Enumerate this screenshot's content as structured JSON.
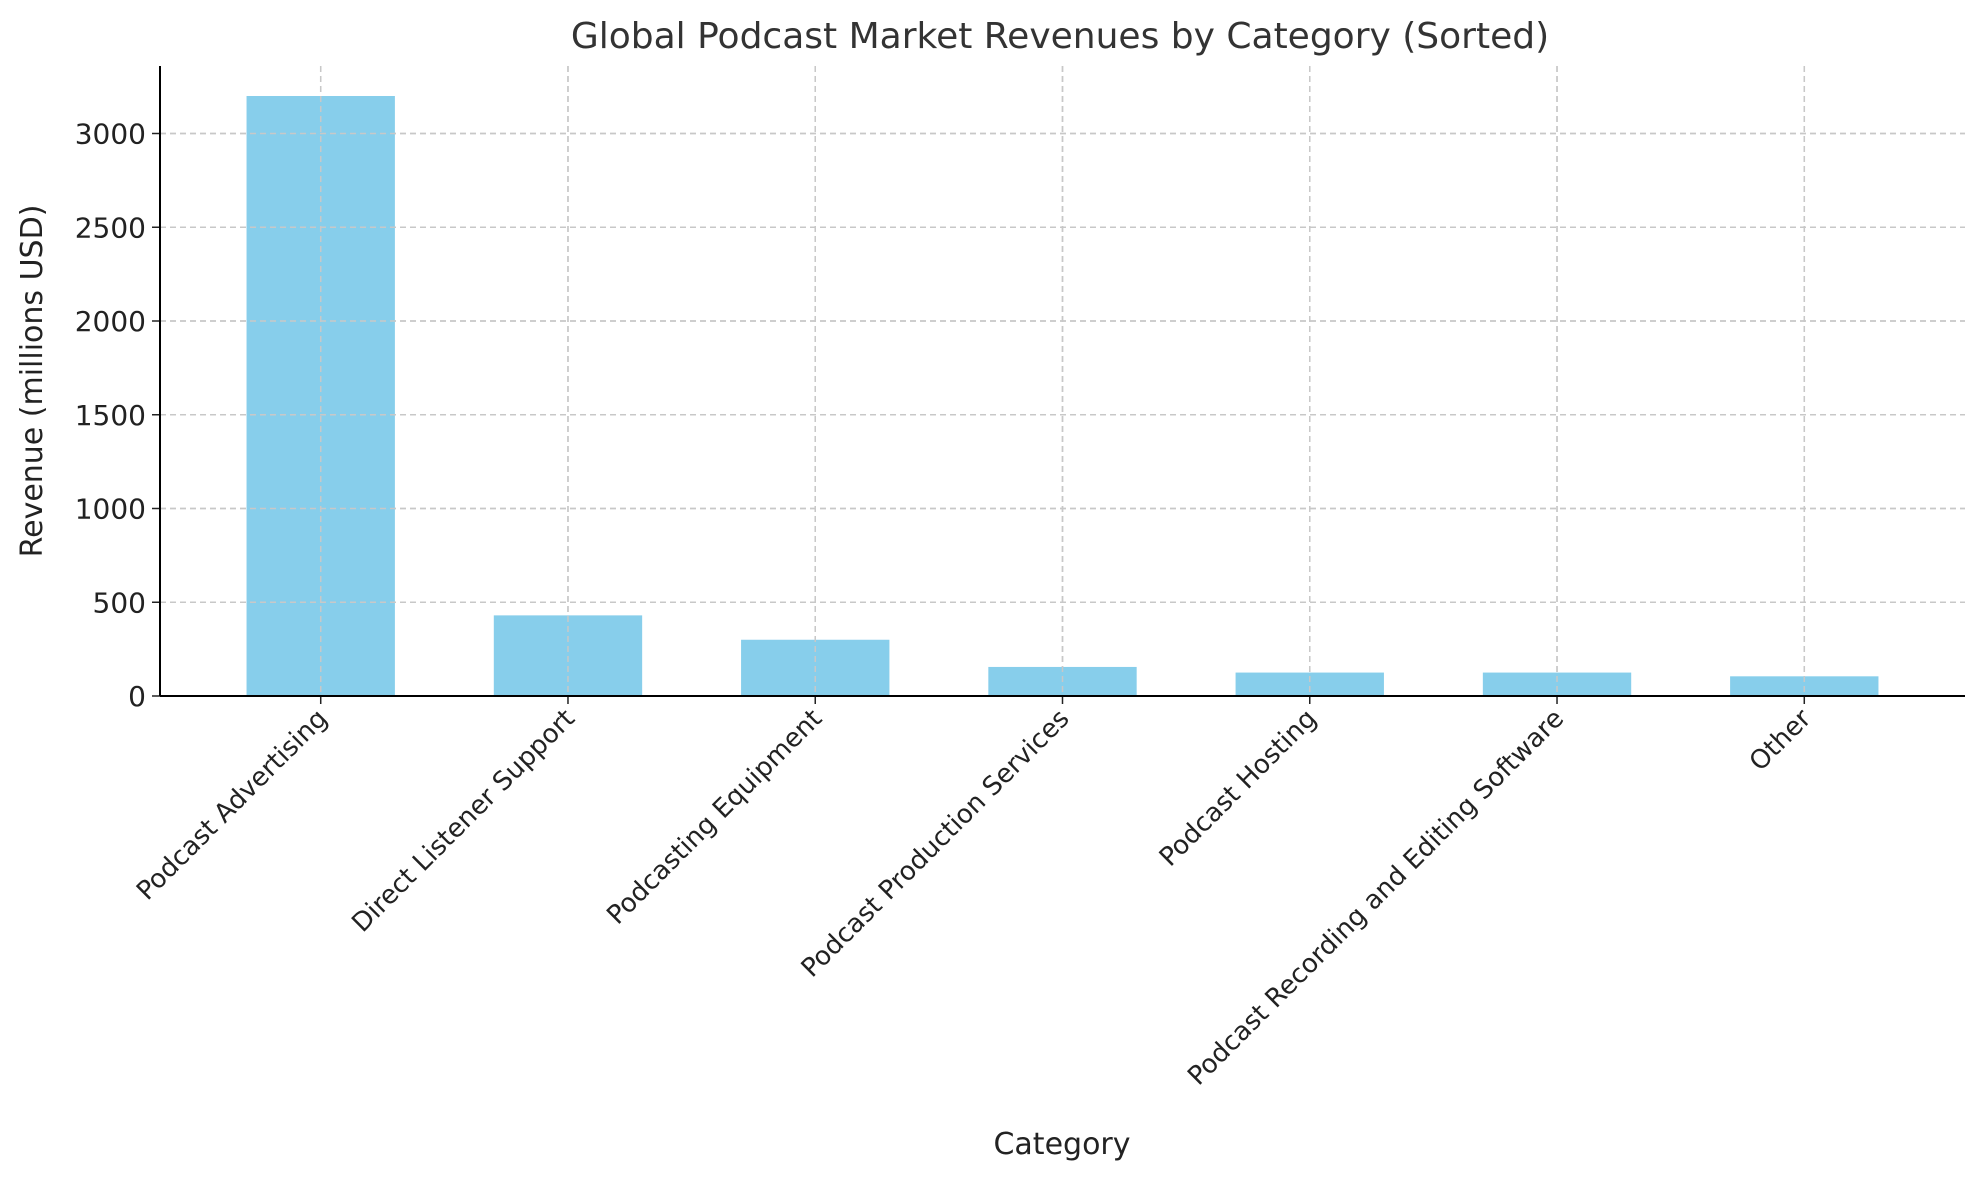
{
  "chart_data": {
    "type": "bar",
    "title": "Global Podcast Market Revenues by Category (Sorted)",
    "xlabel": "Category",
    "ylabel": "Revenue (millions USD)",
    "categories": [
      "Podcast Advertising",
      "Direct Listener Support",
      "Podcasting Equipment",
      "Podcast Production Services",
      "Podcast Hosting",
      "Podcast Recording and Editing Software",
      "Other"
    ],
    "values": [
      3200,
      430,
      300,
      155,
      125,
      125,
      105
    ],
    "ylim": [
      0,
      3360
    ],
    "yticks": [
      0,
      500,
      1000,
      1500,
      2000,
      2500,
      3000
    ],
    "grid": true,
    "bar_color": "#87CEEB"
  }
}
